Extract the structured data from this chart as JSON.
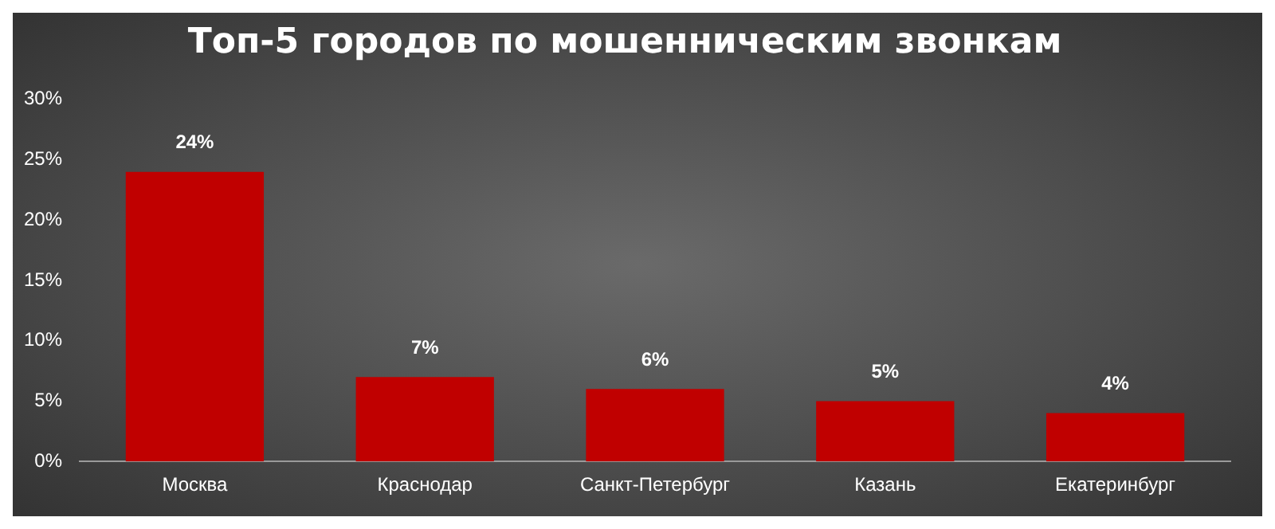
{
  "chart_data": {
    "type": "bar",
    "title": "Топ-5 городов по мошенническим звонкам",
    "categories": [
      "Москва",
      "Краснодар",
      "Санкт-Петербург",
      "Казань",
      "Екатеринбург"
    ],
    "values": [
      24,
      7,
      6,
      5,
      4
    ],
    "color": "#c00000",
    "value_labels": [
      "24%",
      "7%",
      "6%",
      "5%",
      "4%"
    ],
    "ylim": [
      0,
      30
    ],
    "yticks": [
      {
        "value": 0,
        "label": "0%"
      },
      {
        "value": 5,
        "label": "5%"
      },
      {
        "value": 10,
        "label": "10%"
      },
      {
        "value": 15,
        "label": "15%"
      },
      {
        "value": 20,
        "label": "20%"
      },
      {
        "value": 25,
        "label": "25%"
      },
      {
        "value": 30,
        "label": "30%"
      }
    ],
    "grid": false,
    "legend": false
  }
}
